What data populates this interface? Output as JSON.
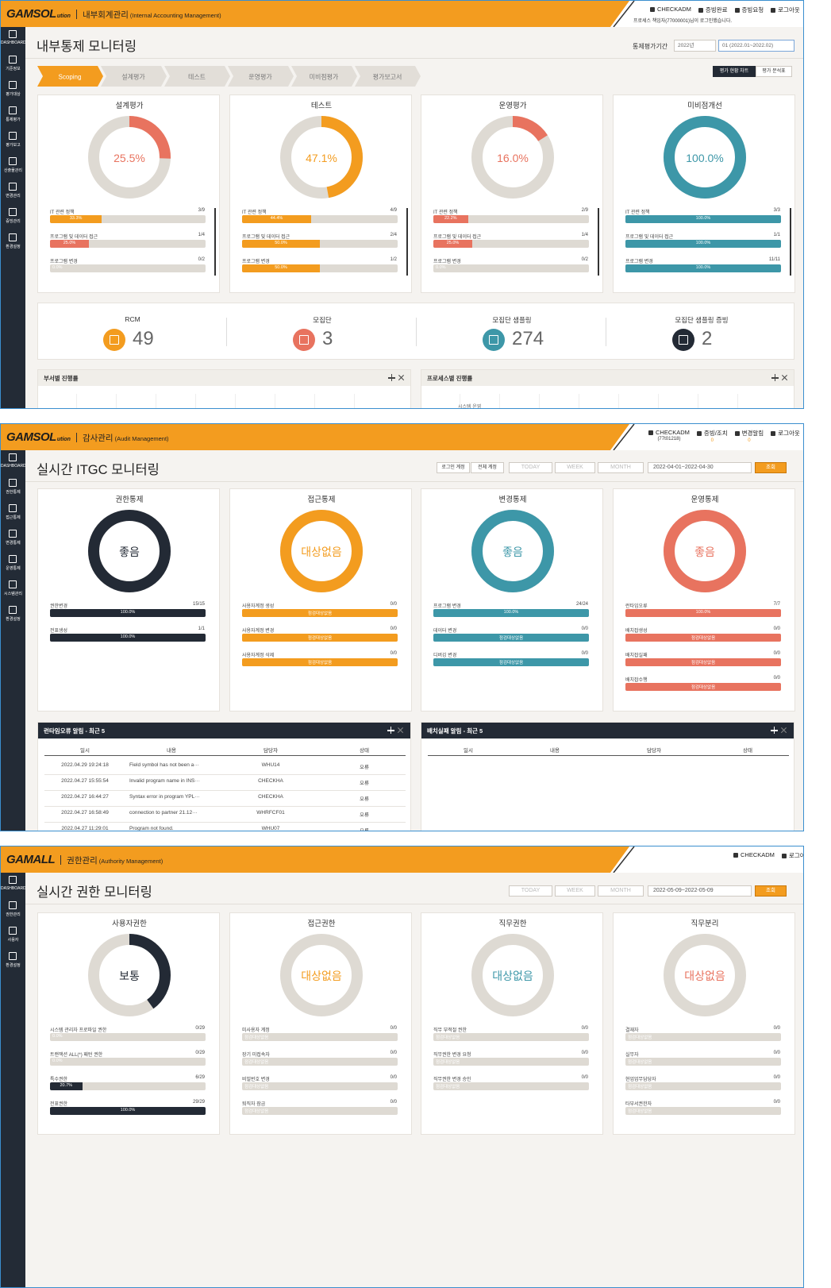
{
  "screens": [
    {
      "logo": "GAMSOL",
      "logo_sub": "ution",
      "module": "내부회계관리",
      "module_en": "(Internal Accounting Management)",
      "user": "CHECKADM",
      "user_note": "프로세스 책임자(77000001)님이 로그인했습니다.",
      "links": [
        {
          "label": "증빙완료"
        },
        {
          "label": "증빙요청"
        },
        {
          "label": "로그아웃"
        }
      ],
      "menu": [
        "DASHBOARD",
        "기준정보",
        "평가대상",
        "통제평가",
        "평가보고",
        "산출물관리",
        "변경관리",
        "증빙관리",
        "환경설정"
      ],
      "title": "내부통제 모니터링",
      "period_label": "통제평가기간",
      "selects": [
        "2022년",
        "01 (2022.01~2022.02)"
      ],
      "steps": [
        "Scoping",
        "설계평가",
        "테스트",
        "운영평가",
        "미비점평가",
        "평가보고서"
      ],
      "active_step": 0,
      "view_buttons": [
        "평가 현황 차트",
        "평가 분석표"
      ],
      "active_view": 0,
      "cards": [
        {
          "title": "설계평가",
          "color": "#e8735f",
          "donut": {
            "value": 25.5,
            "label": "25.5%"
          },
          "rows": [
            {
              "name": "IT 관련 정책",
              "count": "3/9",
              "value": 33.3,
              "label": "33.3%",
              "color": "#f39c1f"
            },
            {
              "name": "프로그램 및 데이터 접근",
              "count": "1/4",
              "value": 25.0,
              "label": "25.0%",
              "color": "#e8735f"
            },
            {
              "name": "프로그램 변경",
              "count": "0/2",
              "value": 0,
              "label": "0.0%",
              "color": "#e8735f"
            }
          ]
        },
        {
          "title": "테스트",
          "color": "#f39c1f",
          "donut": {
            "value": 47.1,
            "label": "47.1%"
          },
          "rows": [
            {
              "name": "IT 관련 정책",
              "count": "4/9",
              "value": 44.4,
              "label": "44.4%",
              "color": "#f39c1f"
            },
            {
              "name": "프로그램 및 데이터 접근",
              "count": "2/4",
              "value": 50.0,
              "label": "50.0%",
              "color": "#f39c1f"
            },
            {
              "name": "프로그램 변경",
              "count": "1/2",
              "value": 50.0,
              "label": "50.0%",
              "color": "#f39c1f"
            }
          ]
        },
        {
          "title": "운영평가",
          "color": "#e8735f",
          "donut": {
            "value": 16.0,
            "label": "16.0%"
          },
          "rows": [
            {
              "name": "IT 관련 정책",
              "count": "2/9",
              "value": 22.2,
              "label": "22.2%",
              "color": "#e8735f"
            },
            {
              "name": "프로그램 및 데이터 접근",
              "count": "1/4",
              "value": 25.0,
              "label": "25.0%",
              "color": "#e8735f"
            },
            {
              "name": "프로그램 변경",
              "count": "0/2",
              "value": 0,
              "label": "0.0%",
              "color": "#e8735f"
            }
          ]
        },
        {
          "title": "미비점개선",
          "color": "#3d97a8",
          "donut": {
            "value": 100.0,
            "label": "100.0%"
          },
          "rows": [
            {
              "name": "IT 관련 정책",
              "count": "3/3",
              "value": 100.0,
              "label": "100.0%",
              "color": "#3d97a8"
            },
            {
              "name": "프로그램 및 데이터 접근",
              "count": "1/1",
              "value": 100.0,
              "label": "100.0%",
              "color": "#3d97a8"
            },
            {
              "name": "프로그램 변경",
              "count": "11/11",
              "value": 100.0,
              "label": "100.0%",
              "color": "#3d97a8"
            }
          ]
        }
      ],
      "stats": [
        {
          "name": "RCM",
          "value": 49,
          "color": "#f39c1f"
        },
        {
          "name": "모집단",
          "value": 3,
          "color": "#e8735f"
        },
        {
          "name": "모집단 샘플링",
          "value": 274,
          "color": "#3d97a8"
        },
        {
          "name": "모집단 샘플링 증빙",
          "value": 2,
          "color": "#232a35"
        }
      ],
      "panels": [
        {
          "title": "부서별 진행률"
        },
        {
          "title": "프로세스별 진행률",
          "note": "시스템 운영"
        }
      ]
    },
    {
      "logo": "GAMSOL",
      "logo_sub": "ution",
      "module": "감사관리",
      "module_en": "(Audit Management)",
      "user": "CHECKADM",
      "user_id": "(77t01218)",
      "links": [
        {
          "label": "증빙/조치",
          "count": 0
        },
        {
          "label": "변경알림",
          "count": 0
        },
        {
          "label": "로그아웃"
        }
      ],
      "menu": [
        "DASHBOARD",
        "권한통제",
        "접근통제",
        "변경통제",
        "운영통제",
        "시스템관리",
        "환경설정"
      ],
      "title": "실시간 ITGC 모니터링",
      "toggles": [
        "로그인 계정",
        "전체 계정"
      ],
      "ranges": [
        "TODAY",
        "WEEK",
        "MONTH"
      ],
      "date": "2022-04-01~2022-04-30",
      "search": "조회",
      "cards": [
        {
          "title": "권한통제",
          "color": "#232a35",
          "donut": {
            "value": 100,
            "label": "좋음"
          },
          "rows": [
            {
              "name": "권한변경",
              "count": "15/15",
              "value": 100.0,
              "label": "100.0%",
              "color": "#232a35"
            },
            {
              "name": "전표생성",
              "count": "1/1",
              "value": 100.0,
              "label": "100.0%",
              "color": "#232a35"
            }
          ]
        },
        {
          "title": "접근통제",
          "color": "#f39c1f",
          "donut": {
            "value": 100,
            "label": "대상없음"
          },
          "rows": [
            {
              "name": "사용자계정 생성",
              "count": "0/0",
              "value": 100,
              "label": "점검대상없음",
              "color": "#f39c1f"
            },
            {
              "name": "사용자계정 변경",
              "count": "0/0",
              "value": 100,
              "label": "점검대상없음",
              "color": "#f39c1f"
            },
            {
              "name": "사용자계정 삭제",
              "count": "0/0",
              "value": 100,
              "label": "점검대상없음",
              "color": "#f39c1f"
            }
          ]
        },
        {
          "title": "변경통제",
          "color": "#3d97a8",
          "donut": {
            "value": 100,
            "label": "좋음"
          },
          "rows": [
            {
              "name": "프로그램 변경",
              "count": "24/24",
              "value": 100.0,
              "label": "100.0%",
              "color": "#3d97a8"
            },
            {
              "name": "데이터 변경",
              "count": "0/0",
              "value": 100,
              "label": "점검대상없음",
              "color": "#3d97a8"
            },
            {
              "name": "디버깅 변경",
              "count": "0/0",
              "value": 100,
              "label": "점검대상없음",
              "color": "#3d97a8"
            }
          ]
        },
        {
          "title": "운영통제",
          "color": "#e8735f",
          "donut": {
            "value": 100,
            "label": "좋음"
          },
          "rows": [
            {
              "name": "런타임오류",
              "count": "7/7",
              "value": 100.0,
              "label": "100.0%",
              "color": "#e8735f"
            },
            {
              "name": "배치잡생성",
              "count": "0/0",
              "value": 100,
              "label": "점검대상없음",
              "color": "#e8735f"
            },
            {
              "name": "배치잡실패",
              "count": "0/0",
              "value": 100,
              "label": "점검대상없음",
              "color": "#e8735f"
            },
            {
              "name": "배치잡수행",
              "count": "0/0",
              "value": 100,
              "label": "점검대상없음",
              "color": "#e8735f"
            }
          ]
        }
      ],
      "tables": [
        {
          "title": "런타임오류 알림 - 최근 5",
          "columns": [
            "일시",
            "내용",
            "담당자",
            "상태"
          ],
          "rows": [
            [
              "2022.04.29 19:24:18",
              "Field symbol has not been a···",
              "WHU14",
              "오류"
            ],
            [
              "2022.04.27 15:55:54",
              "Invalid program name in INS···",
              "CHECKHA",
              "오류"
            ],
            [
              "2022.04.27 16:44:27",
              "Syntax error in program YPL···",
              "CHECKHA",
              "오류"
            ],
            [
              "2022.04.27 16:58:49",
              "connection to partner 21.12···",
              "WHRFCF01",
              "오류"
            ],
            [
              "2022.04.27 11:29:01",
              "Program not found.",
              "WHU07",
              "오류"
            ]
          ]
        },
        {
          "title": "배치실패 알림 - 최근 5",
          "columns": [
            "일시",
            "내용",
            "담당자",
            "상태"
          ],
          "rows": []
        }
      ]
    },
    {
      "logo": "GAMALL",
      "module": "권한관리",
      "module_en": "(Authority Management)",
      "user": "CHECKADM",
      "links": [
        {
          "label": "로그아웃"
        }
      ],
      "menu": [
        "DASHBOARD",
        "권한관리",
        "사용자",
        "환경설정"
      ],
      "title": "실시간 권한 모니터링",
      "ranges": [
        "TODAY",
        "WEEK",
        "MONTH"
      ],
      "date": "2022-05-09~2022-05-09",
      "search": "조회",
      "cards": [
        {
          "title": "사용자권한",
          "color": "#232a35",
          "donut": {
            "value": 40,
            "label": "보통"
          },
          "rows": [
            {
              "name": "시스템 관리자 프로파일 권한",
              "count": "0/29",
              "value": 0,
              "label": "0.0%",
              "color": "#232a35"
            },
            {
              "name": "트랜잭션 ALL(*) 패턴 권한",
              "count": "0/29",
              "value": 0,
              "label": "0.0%",
              "color": "#232a35"
            },
            {
              "name": "특수권한",
              "count": "6/29",
              "value": 20.7,
              "label": "20.7%",
              "color": "#232a35"
            },
            {
              "name": "전표권한",
              "count": "29/29",
              "value": 100.0,
              "label": "100.0%",
              "color": "#232a35"
            }
          ]
        },
        {
          "title": "접근권한",
          "color": "#f39c1f",
          "donut": {
            "value": 0,
            "label": "대상없음"
          },
          "rows": [
            {
              "name": "미사용자 계정",
              "count": "0/0",
              "value": 0,
              "label": "점검대상없음",
              "color": "#f39c1f"
            },
            {
              "name": "장기 미접속자",
              "count": "0/0",
              "value": 0,
              "label": "점검대상없음",
              "color": "#f39c1f"
            },
            {
              "name": "비밀번호 변경",
              "count": "0/0",
              "value": 0,
              "label": "점검대상없음",
              "color": "#f39c1f"
            },
            {
              "name": "퇴직자 잠금",
              "count": "0/0",
              "value": 0,
              "label": "점검대상없음",
              "color": "#f39c1f"
            }
          ]
        },
        {
          "title": "직무권한",
          "color": "#3d97a8",
          "donut": {
            "value": 0,
            "label": "대상없음"
          },
          "rows": [
            {
              "name": "직무 부적절 권한",
              "count": "0/0",
              "value": 0,
              "label": "점검대상없음",
              "color": "#3d97a8"
            },
            {
              "name": "직무권한 변경 요청",
              "count": "0/0",
              "value": 0,
              "label": "점검대상없음",
              "color": "#3d97a8"
            },
            {
              "name": "직무권한 변경 승인",
              "count": "0/0",
              "value": 0,
              "label": "점검대상없음",
              "color": "#3d97a8"
            }
          ]
        },
        {
          "title": "직무분리",
          "color": "#e8735f",
          "donut": {
            "value": 0,
            "label": "대상없음"
          },
          "rows": [
            {
              "name": "결재자",
              "count": "0/0",
              "value": 0,
              "label": "점검대상없음",
              "color": "#e8735f"
            },
            {
              "name": "실무자",
              "count": "0/0",
              "value": 0,
              "label": "점검대상없음",
              "color": "#e8735f"
            },
            {
              "name": "현업업무담당자",
              "count": "0/0",
              "value": 0,
              "label": "점검대상없음",
              "color": "#e8735f"
            },
            {
              "name": "타부서권한자",
              "count": "0/0",
              "value": 0,
              "label": "점검대상없음",
              "color": "#e8735f"
            }
          ]
        }
      ]
    }
  ]
}
